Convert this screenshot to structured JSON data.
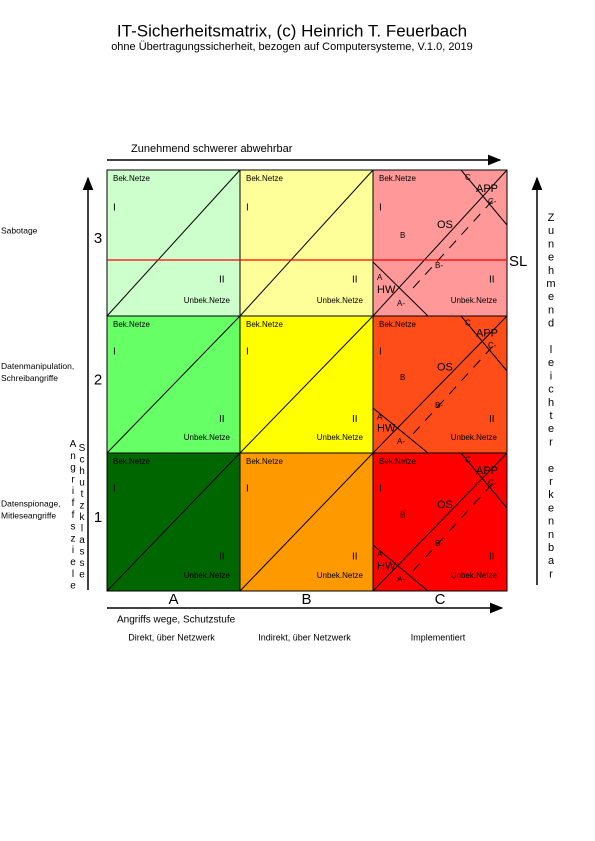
{
  "header": {
    "title": "IT-Sicherheitsmatrix, (c) Heinrich T. Feuerbach",
    "subtitle": "ohne Übertragungssicherheit, bezogen auf Computersysteme, V.1.0, 2019"
  },
  "axes": {
    "top": "Zunehmend schwerer abwehrbar",
    "right": "Zunehmend leichter erkennbar",
    "right_label": "SL",
    "left_a": "Angriffsziele",
    "left_b": "Schutzklasse",
    "bottom": "Angriffs wege, Schutzstufe"
  },
  "columns": [
    {
      "letter": "A",
      "description": "Direkt, über Netzwerk"
    },
    {
      "letter": "B",
      "description": "Indirekt, über Netzwerk"
    },
    {
      "letter": "C",
      "description": "Implementiert"
    }
  ],
  "rows": [
    {
      "number": "3",
      "label": [
        "Sabotage"
      ],
      "cells": [
        {
          "top": "Bek.Netze",
          "i": "I",
          "ii": "II",
          "bottom": "Unbek.Netze"
        },
        {
          "top": "Bek.Netze",
          "i": "I",
          "ii": "II",
          "bottom": "Unbek.Netze"
        },
        {
          "top": "Bek.Netze",
          "i": "I",
          "ii": "II",
          "bottom": "Unbek.Netze",
          "extra": {
            "c": "C",
            "app": "APP",
            "c_minus": "C-",
            "os": "OS",
            "b": "B",
            "b_minus": "B-",
            "a": "A",
            "hw": "HW",
            "a_minus": "A-"
          }
        }
      ]
    },
    {
      "number": "2",
      "label": [
        "Datenmanipulation,",
        "Schreibangriffe"
      ],
      "cells": [
        {
          "top": "Bek.Netze",
          "i": "I",
          "ii": "II",
          "bottom": "Unbek.Netze"
        },
        {
          "top": "Bek.Netze",
          "i": "I",
          "ii": "II",
          "bottom": "Unbek.Netze"
        },
        {
          "top": "Bek.Netze",
          "i": "I",
          "ii": "II",
          "bottom": "Unbek.Netze",
          "extra": {
            "c": "C",
            "app": "APP",
            "c_minus": "C-",
            "os": "OS",
            "b": "B",
            "b_minus": "B-",
            "a": "A",
            "hw": "HW",
            "a_minus": "A-"
          }
        }
      ]
    },
    {
      "number": "1",
      "label": [
        "Datenspionage,",
        "Mitleseangriffe"
      ],
      "cells": [
        {
          "top": "Bek.Netze",
          "i": "I",
          "ii": "II",
          "bottom": "Unbek.Netze"
        },
        {
          "top": "Bek.Netze",
          "i": "I",
          "ii": "II",
          "bottom": "Unbek.Netze"
        },
        {
          "top": "Bek.Netze",
          "i": "I",
          "ii": "II",
          "bottom": "Unbek.Netze",
          "extra": {
            "c": "C",
            "app": "APP",
            "c_minus": "C-",
            "os": "OS",
            "b": "B",
            "b_minus": "B-",
            "a": "A",
            "hw": "HW",
            "a_minus": "A-"
          }
        }
      ]
    }
  ]
}
